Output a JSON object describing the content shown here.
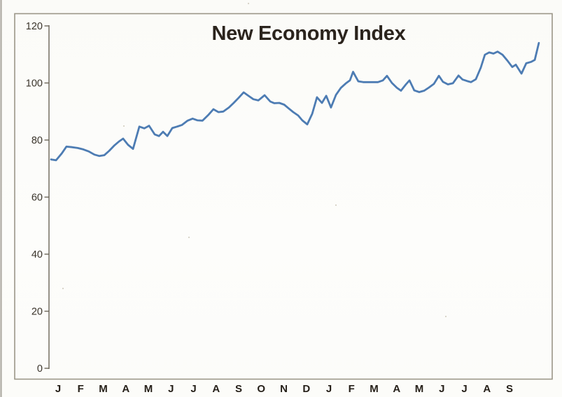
{
  "chart_data": {
    "type": "line",
    "title": "New Economy Index",
    "subtitle": "",
    "legend": "none",
    "grid": "off",
    "ylabel": "",
    "xlabel": "",
    "ylim": [
      0,
      120
    ],
    "y_ticks": [
      0,
      20,
      40,
      60,
      80,
      100,
      120
    ],
    "x_tick_labels": [
      "J",
      "F",
      "M",
      "A",
      "M",
      "J",
      "J",
      "A",
      "S",
      "O",
      "N",
      "D",
      "J",
      "F",
      "M",
      "A",
      "M",
      "J",
      "J",
      "A",
      "S"
    ],
    "x_axis_note": "21 consecutive months (Jan of year 1 through Sep of year 2), weekly samples; x of each point is in month units where 0 = first J tick",
    "series": [
      {
        "name": "New Economy Index",
        "points": [
          [
            -0.31,
            73.2
          ],
          [
            -0.09,
            72.9
          ],
          [
            0.16,
            75.3
          ],
          [
            0.37,
            77.7
          ],
          [
            0.62,
            77.5
          ],
          [
            0.87,
            77.2
          ],
          [
            1.12,
            76.7
          ],
          [
            1.36,
            76.0
          ],
          [
            1.61,
            74.9
          ],
          [
            1.83,
            74.4
          ],
          [
            2.05,
            74.7
          ],
          [
            2.26,
            76.2
          ],
          [
            2.48,
            78.0
          ],
          [
            2.7,
            79.5
          ],
          [
            2.88,
            80.5
          ],
          [
            3.1,
            78.3
          ],
          [
            3.32,
            76.9
          ],
          [
            3.6,
            84.7
          ],
          [
            3.82,
            84.1
          ],
          [
            4.03,
            85.0
          ],
          [
            4.28,
            82.0
          ],
          [
            4.47,
            81.4
          ],
          [
            4.65,
            82.9
          ],
          [
            4.84,
            81.4
          ],
          [
            5.06,
            84.2
          ],
          [
            5.27,
            84.7
          ],
          [
            5.49,
            85.3
          ],
          [
            5.74,
            86.8
          ],
          [
            5.96,
            87.5
          ],
          [
            6.18,
            86.9
          ],
          [
            6.4,
            86.8
          ],
          [
            6.67,
            88.9
          ],
          [
            6.88,
            90.8
          ],
          [
            7.1,
            89.8
          ],
          [
            7.32,
            90.0
          ],
          [
            7.57,
            91.4
          ],
          [
            7.78,
            93.0
          ],
          [
            8.0,
            94.8
          ],
          [
            8.22,
            96.7
          ],
          [
            8.43,
            95.5
          ],
          [
            8.65,
            94.3
          ],
          [
            8.87,
            93.9
          ],
          [
            9.15,
            95.7
          ],
          [
            9.4,
            93.5
          ],
          [
            9.58,
            92.9
          ],
          [
            9.8,
            93.0
          ],
          [
            10.02,
            92.4
          ],
          [
            10.23,
            91.0
          ],
          [
            10.42,
            89.8
          ],
          [
            10.64,
            88.6
          ],
          [
            10.82,
            86.9
          ],
          [
            11.04,
            85.5
          ],
          [
            11.26,
            89.2
          ],
          [
            11.47,
            95.0
          ],
          [
            11.69,
            93.0
          ],
          [
            11.88,
            95.5
          ],
          [
            12.09,
            91.4
          ],
          [
            12.31,
            95.8
          ],
          [
            12.53,
            98.3
          ],
          [
            12.74,
            99.8
          ],
          [
            12.93,
            100.9
          ],
          [
            13.07,
            103.9
          ],
          [
            13.3,
            100.6
          ],
          [
            13.52,
            100.3
          ],
          [
            13.74,
            100.3
          ],
          [
            13.95,
            100.3
          ],
          [
            14.17,
            100.3
          ],
          [
            14.39,
            100.9
          ],
          [
            14.57,
            102.5
          ],
          [
            14.79,
            100.0
          ],
          [
            15.01,
            98.3
          ],
          [
            15.19,
            97.3
          ],
          [
            15.41,
            99.5
          ],
          [
            15.57,
            100.9
          ],
          [
            15.78,
            97.4
          ],
          [
            16.0,
            96.8
          ],
          [
            16.22,
            97.3
          ],
          [
            16.43,
            98.4
          ],
          [
            16.65,
            99.7
          ],
          [
            16.87,
            102.5
          ],
          [
            17.05,
            100.4
          ],
          [
            17.27,
            99.5
          ],
          [
            17.49,
            99.9
          ],
          [
            17.74,
            102.6
          ],
          [
            17.92,
            101.2
          ],
          [
            18.11,
            100.7
          ],
          [
            18.29,
            100.3
          ],
          [
            18.51,
            101.3
          ],
          [
            18.73,
            105.4
          ],
          [
            18.91,
            109.9
          ],
          [
            19.1,
            110.7
          ],
          [
            19.29,
            110.3
          ],
          [
            19.47,
            111.0
          ],
          [
            19.69,
            109.9
          ],
          [
            19.91,
            107.8
          ],
          [
            20.12,
            105.6
          ],
          [
            20.28,
            106.4
          ],
          [
            20.53,
            103.3
          ],
          [
            20.74,
            106.9
          ],
          [
            20.96,
            107.4
          ],
          [
            21.12,
            108.1
          ],
          [
            21.3,
            114.0
          ]
        ]
      }
    ],
    "colors": {
      "line": "#4d7cb3",
      "title": "#2b241d",
      "tick_label": "#3a342b",
      "month_label": "#262019",
      "axis": "#6a6457",
      "frame": "#8a8474",
      "scan_edge": "#6e685c",
      "speck": "#d5d1c5"
    }
  }
}
